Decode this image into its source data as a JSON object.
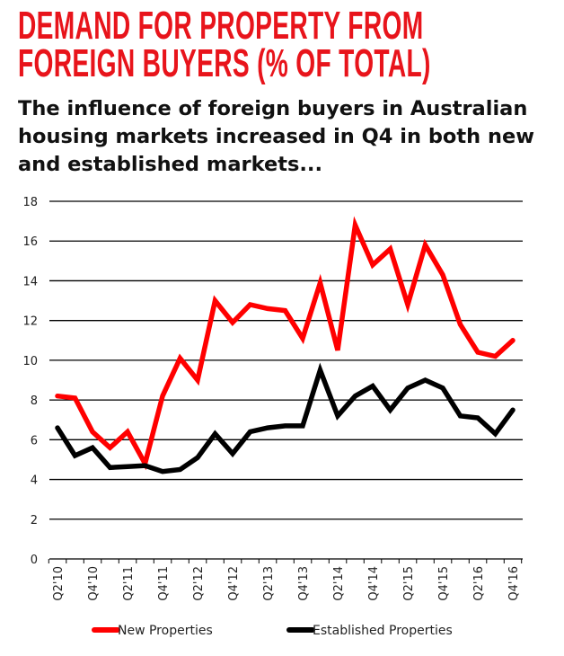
{
  "title": "DEMAND FOR PROPERTY FROM FOREIGN BUYERS (% OF TOTAL)",
  "subtitle": "The influence of foreign buyers in Australian housing markets increased in Q4 in both new and established markets...",
  "chart_data": {
    "type": "line",
    "title": "DEMAND FOR PROPERTY FROM FOREIGN BUYERS (% OF TOTAL)",
    "xlabel": "",
    "ylabel": "",
    "ylim": [
      0,
      18
    ],
    "yticks": [
      0,
      2,
      4,
      6,
      8,
      10,
      12,
      14,
      16,
      18
    ],
    "grid": true,
    "legend_placement": "bottom",
    "x": [
      "Q2'10",
      "Q3'10",
      "Q4'10",
      "Q1'11",
      "Q2'11",
      "Q3'11",
      "Q4'11",
      "Q1'12",
      "Q2'12",
      "Q3'12",
      "Q4'12",
      "Q1'13",
      "Q2'13",
      "Q3'13",
      "Q4'13",
      "Q1'14",
      "Q2'14",
      "Q3'14",
      "Q4'14",
      "Q1'15",
      "Q2'15",
      "Q3'15",
      "Q4'15",
      "Q1'16",
      "Q2'16",
      "Q3'16",
      "Q4'16"
    ],
    "xtick_labels": [
      "Q2'10",
      "Q4'10",
      "Q2'11",
      "Q4'11",
      "Q2'12",
      "Q4'12",
      "Q2'13",
      "Q4'13",
      "Q2'14",
      "Q4'14",
      "Q2'15",
      "Q4'15",
      "Q2'16",
      "Q4'16"
    ],
    "series": [
      {
        "name": "New Properties",
        "color": "#ff0000",
        "values": [
          8.2,
          8.1,
          6.4,
          5.6,
          6.4,
          4.8,
          8.2,
          10.1,
          9.0,
          13.0,
          11.9,
          12.8,
          12.6,
          12.5,
          11.1,
          13.9,
          10.5,
          16.8,
          14.8,
          15.6,
          12.8,
          15.8,
          14.3,
          11.8,
          10.4,
          10.2,
          11.0
        ]
      },
      {
        "name": "Established Properties",
        "color": "#000000",
        "values": [
          6.6,
          5.2,
          5.6,
          4.6,
          4.65,
          4.7,
          4.4,
          4.5,
          5.1,
          6.3,
          5.3,
          6.4,
          6.6,
          6.7,
          6.7,
          9.5,
          7.2,
          8.2,
          8.7,
          7.5,
          8.6,
          9.0,
          8.6,
          7.2,
          7.1,
          6.3,
          7.5
        ]
      }
    ]
  }
}
